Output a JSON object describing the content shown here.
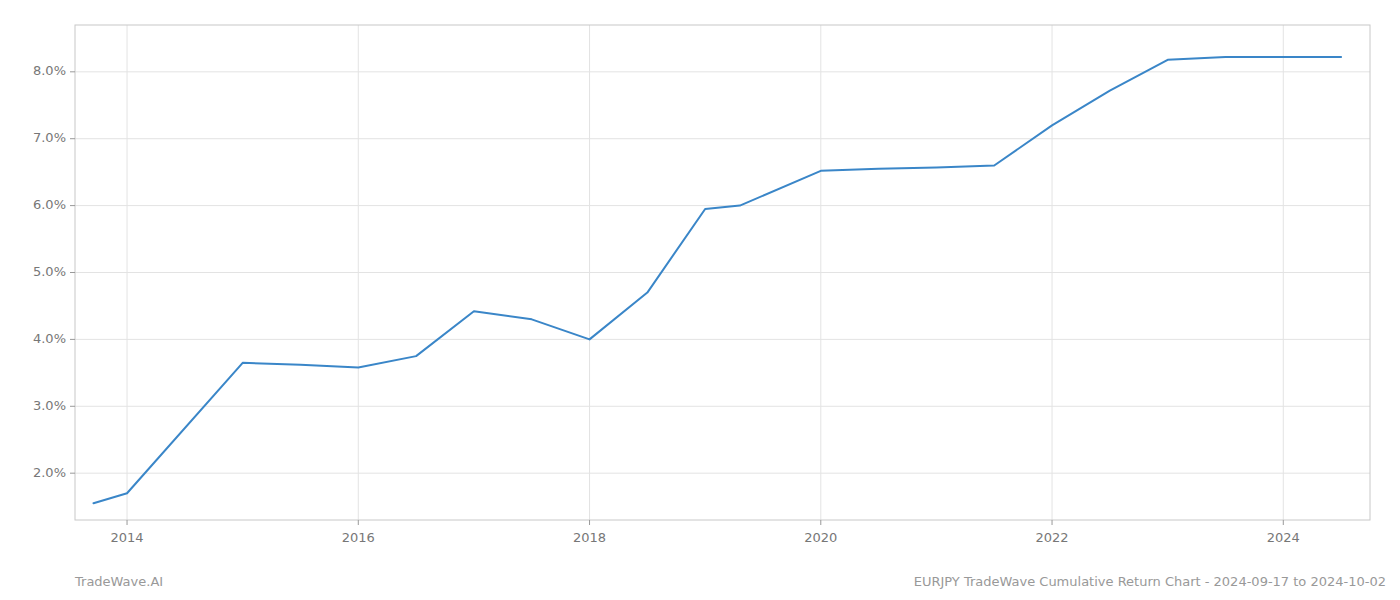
{
  "chart_data": {
    "type": "line",
    "x": [
      2013.71,
      2014.0,
      2015.0,
      2015.5,
      2016.0,
      2016.5,
      2017.0,
      2017.5,
      2018.0,
      2018.5,
      2019.0,
      2019.3,
      2020.0,
      2020.5,
      2021.0,
      2021.5,
      2022.0,
      2022.5,
      2023.0,
      2023.5,
      2024.0,
      2024.5
    ],
    "values": [
      1.55,
      1.7,
      3.65,
      3.62,
      3.58,
      3.75,
      4.42,
      4.3,
      4.0,
      4.7,
      5.95,
      6.0,
      6.52,
      6.55,
      6.57,
      6.6,
      7.2,
      7.72,
      8.18,
      8.22,
      8.22,
      8.22
    ],
    "color": "#3a86c8",
    "xlim": [
      2013.55,
      2024.75
    ],
    "xticks": [
      2014,
      2016,
      2018,
      2020,
      2022,
      2024
    ],
    "ylim": [
      1.3,
      8.7
    ],
    "yticks": [
      {
        "value": 2.0,
        "label": "2.0%"
      },
      {
        "value": 3.0,
        "label": "3.0%"
      },
      {
        "value": 4.0,
        "label": "4.0%"
      },
      {
        "value": 5.0,
        "label": "5.0%"
      },
      {
        "value": 6.0,
        "label": "6.0%"
      },
      {
        "value": 7.0,
        "label": "7.0%"
      },
      {
        "value": 8.0,
        "label": "8.0%"
      }
    ],
    "grid": true,
    "annotations": [
      "TradeWave.AI",
      "EURJPY TradeWave Cumulative Return Chart - 2024-09-17 to 2024-10-02"
    ]
  }
}
